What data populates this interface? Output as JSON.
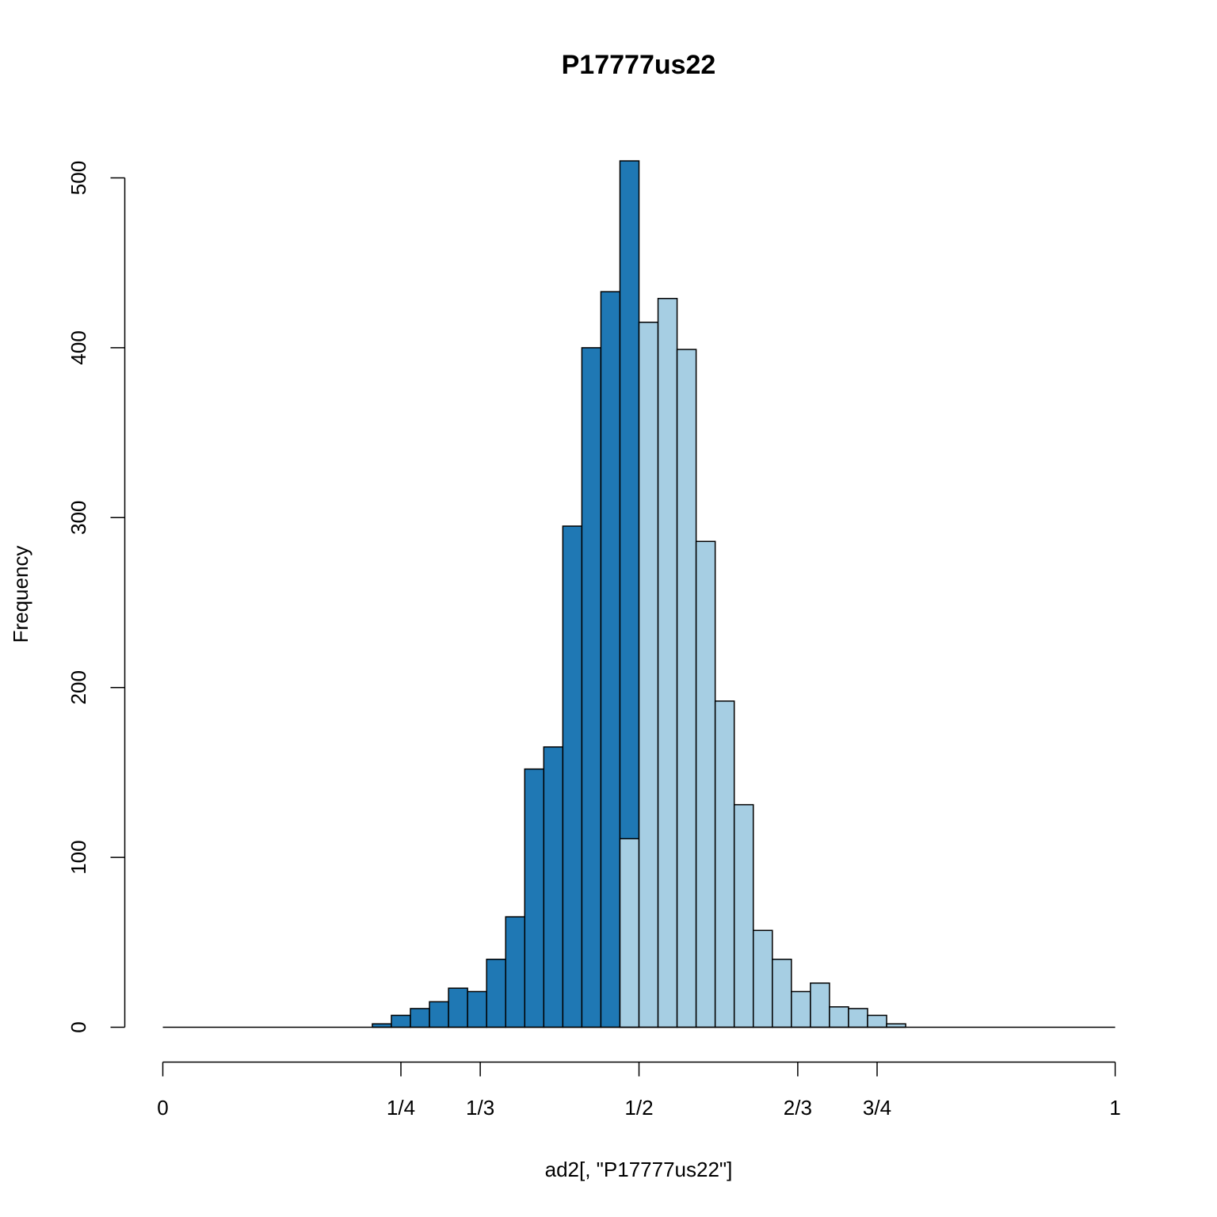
{
  "chart_data": {
    "type": "bar",
    "title": "P17777us22",
    "xlabel": "ad2[, \"P17777us22\"]",
    "ylabel": "Frequency",
    "xlim": [
      0,
      1
    ],
    "ylim": [
      0,
      500
    ],
    "bin_width": 0.02,
    "y_ticks": [
      0,
      100,
      200,
      300,
      400,
      500
    ],
    "y_tick_labels": [
      "0",
      "100",
      "200",
      "300",
      "400",
      "500"
    ],
    "x_ticks": [
      0,
      0.25,
      0.3333,
      0.5,
      0.6667,
      0.75,
      1
    ],
    "x_tick_labels": [
      "0",
      "1/4",
      "1/3",
      "1/2",
      "2/3",
      "3/4",
      "1"
    ],
    "colors": {
      "below_half": "#1F78B4",
      "above_half": "#A6CEE3"
    },
    "series": [
      {
        "color": "#1F78B4",
        "bins": [
          [
            0.22,
            0.24,
            2
          ],
          [
            0.24,
            0.26,
            7
          ],
          [
            0.26,
            0.28,
            11
          ],
          [
            0.28,
            0.3,
            15
          ],
          [
            0.3,
            0.32,
            23
          ],
          [
            0.32,
            0.34,
            21
          ],
          [
            0.34,
            0.36,
            40
          ],
          [
            0.36,
            0.38,
            65
          ],
          [
            0.38,
            0.4,
            152
          ],
          [
            0.4,
            0.42,
            165
          ],
          [
            0.42,
            0.44,
            295
          ],
          [
            0.44,
            0.46,
            400
          ],
          [
            0.46,
            0.48,
            433
          ],
          [
            0.48,
            0.5,
            510
          ]
        ]
      },
      {
        "color": "#A6CEE3",
        "bins": [
          [
            0.48,
            0.5,
            111
          ],
          [
            0.5,
            0.52,
            415
          ],
          [
            0.52,
            0.54,
            429
          ],
          [
            0.54,
            0.56,
            399
          ],
          [
            0.56,
            0.58,
            286
          ],
          [
            0.58,
            0.6,
            192
          ],
          [
            0.6,
            0.62,
            131
          ],
          [
            0.62,
            0.64,
            57
          ],
          [
            0.64,
            0.66,
            40
          ],
          [
            0.66,
            0.68,
            21
          ],
          [
            0.68,
            0.7,
            26
          ],
          [
            0.7,
            0.72,
            12
          ],
          [
            0.72,
            0.74,
            11
          ],
          [
            0.74,
            0.76,
            7
          ],
          [
            0.76,
            0.78,
            2
          ]
        ]
      }
    ]
  }
}
